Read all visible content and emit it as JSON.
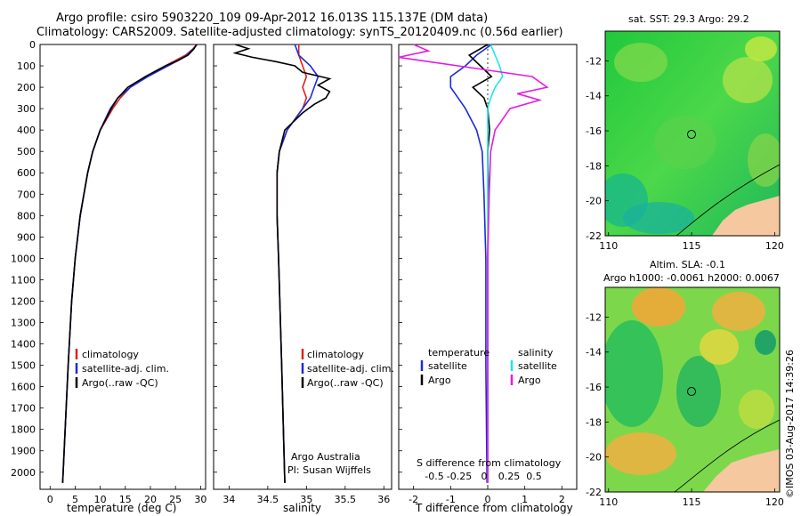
{
  "header": {
    "line1": "Argo profile: csiro 5903220_109 09-Apr-2012 16.013S 115.137E (DM data)",
    "line2": "Climatology: CARS2009. Satellite-adjusted climatology: synTS_20120409.nc (0.56d earlier)"
  },
  "colors": {
    "climatology": "#e0201a",
    "satellite": "#1a2be0",
    "argo": "#000000",
    "sal_sat": "#19e8e8",
    "sal_argo": "#e81ae0",
    "land": "#f5c8a0"
  },
  "chart_data": [
    {
      "type": "line",
      "panel": "temperature",
      "xlabel": "temperature (deg C)",
      "ylabel": "",
      "xlim": [
        -2,
        31
      ],
      "ylim": [
        2080,
        0
      ],
      "xticks": [
        0,
        5,
        10,
        15,
        20,
        25,
        30
      ],
      "yticks": [
        0,
        100,
        200,
        300,
        400,
        500,
        600,
        700,
        800,
        900,
        1000,
        1100,
        1200,
        1300,
        1400,
        1500,
        1600,
        1700,
        1800,
        1900,
        2000
      ],
      "legend": [
        "climatology",
        "satellite-adj. clim.",
        "Argo(..raw -QC)"
      ],
      "series": [
        {
          "name": "climatology",
          "color_key": "climatology",
          "depth": [
            0,
            20,
            50,
            75,
            100,
            150,
            200,
            250,
            300,
            400,
            500,
            600,
            800,
            1000,
            1200,
            1500,
            1800,
            2050
          ],
          "values": [
            29.2,
            28.5,
            27.0,
            25.0,
            23.0,
            19.0,
            16.0,
            14.0,
            12.5,
            10.0,
            8.5,
            7.5,
            6.0,
            5.0,
            4.3,
            3.6,
            3.0,
            2.5
          ]
        },
        {
          "name": "satellite-adj. clim.",
          "color_key": "satellite",
          "depth": [
            0,
            20,
            50,
            75,
            100,
            150,
            200,
            250,
            300,
            400,
            500,
            600,
            800,
            1000,
            1200,
            1500,
            1800,
            2050
          ],
          "values": [
            29.3,
            28.6,
            27.3,
            25.5,
            23.5,
            19.5,
            16.0,
            13.5,
            12.0,
            10.0,
            8.5,
            7.5,
            6.0,
            5.0,
            4.3,
            3.6,
            3.0,
            2.5
          ]
        },
        {
          "name": "Argo(..raw -QC)",
          "color_key": "argo",
          "depth": [
            0,
            20,
            50,
            75,
            100,
            150,
            200,
            250,
            300,
            400,
            500,
            600,
            800,
            1000,
            1200,
            1500,
            1800,
            2050
          ],
          "values": [
            29.2,
            28.7,
            27.5,
            25.5,
            23.0,
            19.0,
            15.5,
            13.5,
            12.2,
            10.0,
            8.5,
            7.5,
            6.0,
            5.0,
            4.3,
            3.6,
            3.0,
            2.5
          ]
        }
      ]
    },
    {
      "type": "line",
      "panel": "salinity",
      "xlabel": "salinity",
      "xlim": [
        33.8,
        36.1
      ],
      "ylim": [
        2080,
        0
      ],
      "xticks": [
        34,
        34.5,
        35,
        35.5,
        36
      ],
      "legend": [
        "climatology",
        "satellite-adj. clim.",
        "Argo(..raw -QC)"
      ],
      "annotation": [
        "Argo Australia",
        "PI: Susan Wijffels"
      ],
      "series": [
        {
          "name": "climatology",
          "color_key": "climatology",
          "depth": [
            0,
            50,
            100,
            150,
            200,
            250,
            300,
            400,
            500,
            600,
            800,
            1000,
            1500,
            2050
          ],
          "values": [
            34.9,
            34.9,
            34.95,
            35.0,
            34.95,
            35.0,
            34.95,
            34.75,
            34.65,
            34.62,
            34.62,
            34.64,
            34.68,
            34.72
          ]
        },
        {
          "name": "satellite-adj. clim.",
          "color_key": "satellite",
          "depth": [
            0,
            50,
            100,
            150,
            200,
            250,
            300,
            400,
            500,
            600,
            800,
            1000,
            1500,
            2050
          ],
          "values": [
            34.85,
            34.9,
            35.05,
            35.15,
            35.1,
            35.05,
            34.95,
            34.75,
            34.65,
            34.62,
            34.62,
            34.64,
            34.68,
            34.72
          ]
        },
        {
          "name": "Argo(..raw -QC)",
          "color_key": "argo",
          "depth": [
            0,
            20,
            40,
            60,
            80,
            100,
            130,
            160,
            190,
            220,
            250,
            280,
            320,
            400,
            500,
            600,
            800,
            1000,
            1500,
            2050
          ],
          "values": [
            34.08,
            34.25,
            34.08,
            34.3,
            34.6,
            34.85,
            34.95,
            35.3,
            35.15,
            35.3,
            35.25,
            35.1,
            34.95,
            34.72,
            34.65,
            34.62,
            34.62,
            34.64,
            34.68,
            34.72
          ]
        }
      ]
    },
    {
      "type": "line",
      "panel": "difference",
      "xlabel": "T difference from climatology",
      "top_label": "S difference from climatology",
      "xlim": [
        -2.4,
        2.4
      ],
      "ylim": [
        2080,
        0
      ],
      "xticks": [
        -2,
        -1,
        0,
        1,
        2
      ],
      "top_ticks": [
        -0.5,
        -0.25,
        0,
        0.25,
        0.5
      ],
      "legend_groups": [
        {
          "title": "temperature",
          "items": [
            "satellite",
            "Argo"
          ]
        },
        {
          "title": "salinity",
          "items": [
            "satellite",
            "Argo"
          ]
        }
      ],
      "series": [
        {
          "name": "temperature satellite",
          "color_key": "satellite",
          "depth": [
            0,
            50,
            100,
            150,
            200,
            250,
            300,
            400,
            500,
            700,
            1000,
            1500,
            2050
          ],
          "values": [
            0.1,
            -0.3,
            -0.6,
            -1.0,
            -1.0,
            -0.8,
            -0.6,
            -0.3,
            -0.15,
            -0.1,
            -0.05,
            -0.05,
            -0.02
          ]
        },
        {
          "name": "temperature Argo",
          "color_key": "argo",
          "depth": [
            0,
            50,
            100,
            150,
            200,
            250,
            300,
            400,
            500,
            700,
            1000,
            1500,
            2050
          ],
          "values": [
            0.0,
            -0.5,
            -0.2,
            0.1,
            -0.4,
            -0.1,
            0.0,
            0.05,
            0.0,
            0.02,
            0.0,
            0.0,
            0.0
          ]
        },
        {
          "name": "salinity satellite",
          "color_key": "sal_sat",
          "depth": [
            0,
            50,
            100,
            150,
            200,
            250,
            300,
            400,
            500,
            700,
            1000,
            1500,
            2050
          ],
          "values": [
            0.02,
            0.05,
            0.08,
            0.1,
            0.05,
            0.02,
            0.0,
            0.0,
            0.0,
            0.0,
            0.0,
            0.0,
            0.0
          ]
        },
        {
          "name": "salinity Argo",
          "color_key": "sal_argo",
          "depth": [
            0,
            30,
            60,
            100,
            150,
            200,
            230,
            260,
            300,
            400,
            500,
            700,
            1000,
            1500,
            2050
          ],
          "values": [
            -0.5,
            -0.4,
            -0.6,
            -0.2,
            0.3,
            0.4,
            0.2,
            0.35,
            0.15,
            0.05,
            0.02,
            0.01,
            0.0,
            0.0,
            0.0
          ]
        }
      ]
    },
    {
      "type": "heatmap",
      "panel": "sst_map",
      "title": "sat. SST: 29.3  Argo: 29.2",
      "xlim": [
        109.8,
        120.3
      ],
      "ylim": [
        -22,
        -10.3
      ],
      "xticks": [
        110,
        115,
        120
      ],
      "yticks": [
        -12,
        -14,
        -16,
        -18,
        -20,
        -22
      ],
      "marker": {
        "lon": 115.137,
        "lat": -16.013
      }
    },
    {
      "type": "heatmap",
      "panel": "sla_map",
      "title_line1": "Altim. SLA: -0.1",
      "title_line2": "Argo h1000: -0.0061  h2000: 0.0067",
      "xlim": [
        109.8,
        120.3
      ],
      "ylim": [
        -22,
        -10.3
      ],
      "xticks": [
        110,
        115,
        120
      ],
      "yticks": [
        -12,
        -14,
        -16,
        -18,
        -20,
        -22
      ],
      "marker": {
        "lon": 115.137,
        "lat": -16.013
      }
    }
  ],
  "watermark": "©IMOS 03-Aug-2017 14:39:26"
}
